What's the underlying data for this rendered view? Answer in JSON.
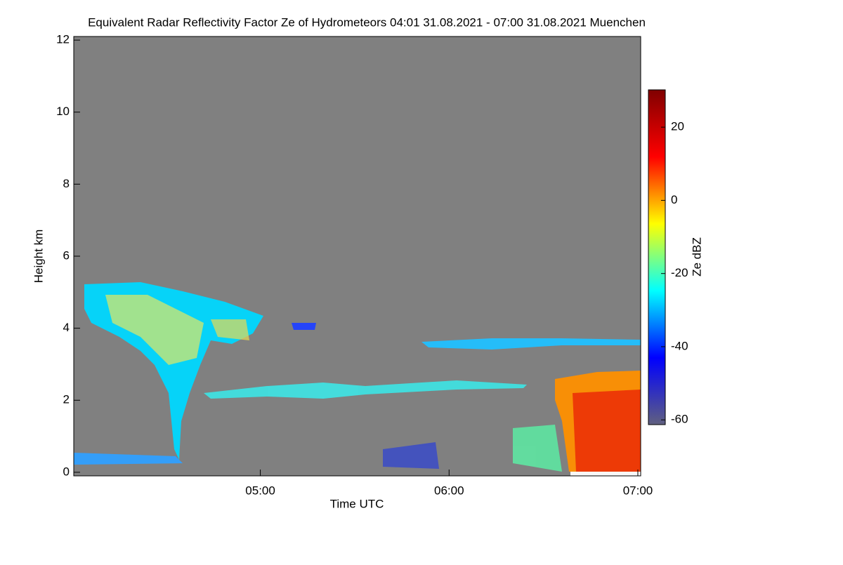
{
  "chart_data": {
    "type": "heatmap",
    "title": "Equivalent Radar Reflectivity Factor Ze of Hydrometeors   04:01 31.08.2021 - 07:00 31.08.2021 Muenchen",
    "xlabel": "Time UTC",
    "ylabel": "Height km",
    "xlim": [
      240.7,
      420.9
    ],
    "xticks": [
      {
        "value": 300,
        "label": "05:00"
      },
      {
        "value": 360,
        "label": "06:00"
      },
      {
        "value": 420,
        "label": "07:00"
      }
    ],
    "ylim": [
      -0.1,
      12.1
    ],
    "yticks": [
      0,
      2,
      4,
      6,
      8,
      10,
      12
    ],
    "background": "#808080",
    "colorbar": {
      "label": "Ze dBZ",
      "lim": [
        -61.3,
        30.2
      ],
      "ticks": [
        -60,
        -40,
        -20,
        0,
        20
      ],
      "colormap": [
        "#606080",
        "#0000ff",
        "#00ffff",
        "#ffff00",
        "#ff0000",
        "#800000"
      ]
    }
  }
}
